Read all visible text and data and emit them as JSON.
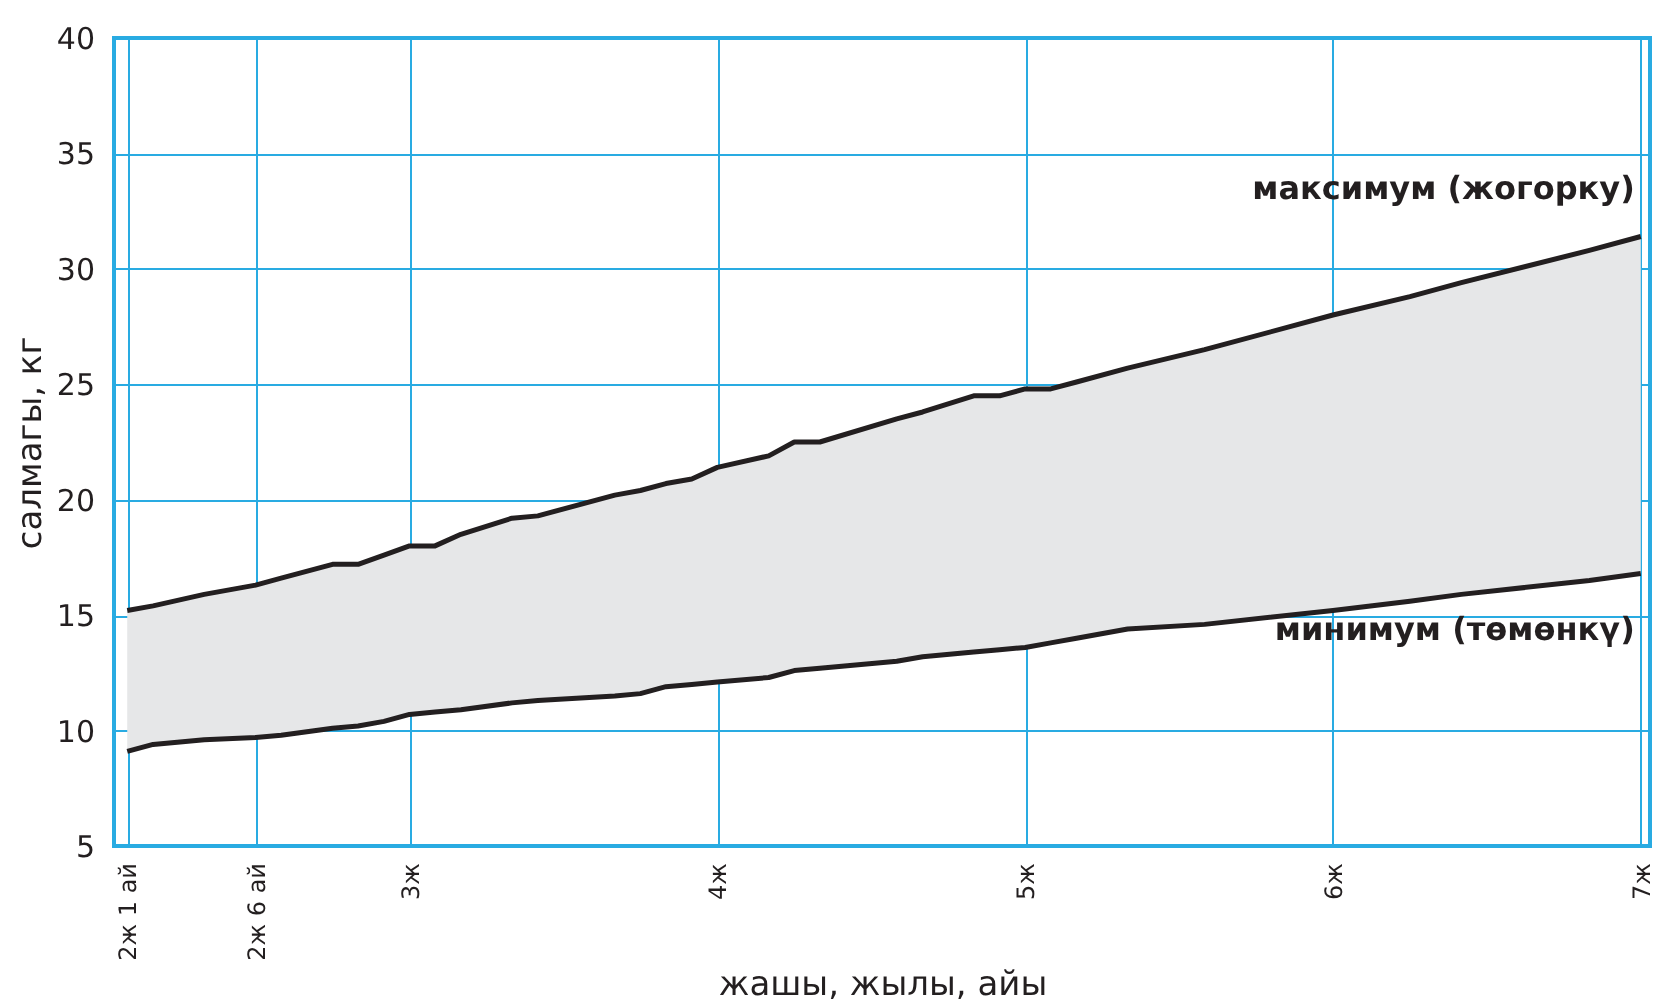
{
  "chart_data": {
    "type": "line",
    "xlabel": "жашы, жылы, айы",
    "ylabel": "салмагы, кг",
    "xlim": [
      2.04,
      7.03
    ],
    "ylim": [
      5,
      40
    ],
    "xticks": [
      {
        "value": 2.083,
        "label": "2ж 1 ай"
      },
      {
        "value": 2.5,
        "label": "2ж 6 ай"
      },
      {
        "value": 3,
        "label": "3ж"
      },
      {
        "value": 4,
        "label": "4ж"
      },
      {
        "value": 5,
        "label": "5ж"
      },
      {
        "value": 6,
        "label": "6ж"
      },
      {
        "value": 7,
        "label": "7ж"
      }
    ],
    "yticks": [
      5,
      10,
      15,
      20,
      25,
      30,
      35,
      40
    ],
    "grid": true,
    "marker": "none",
    "line_style": "solid",
    "x": [
      2.083,
      2.167,
      2.333,
      2.5,
      2.583,
      2.75,
      2.833,
      2.917,
      3,
      3.083,
      3.167,
      3.333,
      3.417,
      3.667,
      3.75,
      3.833,
      3.917,
      4,
      4.167,
      4.25,
      4.333,
      4.583,
      4.667,
      4.833,
      4.917,
      5,
      5.083,
      5.167,
      5.333,
      5.583,
      6,
      6.25,
      6.417,
      6.833,
      7
    ],
    "series": [
      {
        "name": "максимум (жогорку)",
        "color": "#231f20",
        "values": [
          15.2,
          15.4,
          15.9,
          16.3,
          16.6,
          17.2,
          17.2,
          17.6,
          18.0,
          18.0,
          18.5,
          19.2,
          19.3,
          20.2,
          20.4,
          20.7,
          20.9,
          21.4,
          21.9,
          22.5,
          22.5,
          23.5,
          23.8,
          24.5,
          24.5,
          24.8,
          24.8,
          25.1,
          25.7,
          26.5,
          28.0,
          28.8,
          29.4,
          30.8,
          31.4
        ],
        "lower": [
          9.1,
          9.4,
          9.6,
          9.7,
          9.8,
          10.1,
          10.2,
          10.4,
          10.7,
          10.8,
          10.9,
          11.2,
          11.3,
          11.5,
          11.6,
          11.9,
          12.0,
          12.1,
          12.3,
          12.6,
          12.7,
          13.0,
          13.2,
          13.4,
          13.5,
          13.6,
          13.8,
          14.0,
          14.4,
          14.6,
          15.2,
          15.6,
          15.9,
          16.5,
          16.8
        ],
        "upper": [
          15.2,
          15.4,
          15.9,
          16.3,
          16.6,
          17.2,
          17.2,
          17.6,
          18.0,
          18.0,
          18.5,
          19.2,
          19.3,
          20.2,
          20.4,
          20.7,
          20.9,
          21.4,
          21.9,
          22.5,
          22.5,
          23.5,
          23.8,
          24.5,
          24.5,
          24.8,
          24.8,
          25.1,
          25.7,
          26.5,
          28.0,
          28.8,
          29.4,
          30.8,
          31.4
        ]
      },
      {
        "name": "минимум (төмөнкү)",
        "color": "#231f20",
        "values": [
          9.1,
          9.4,
          9.6,
          9.7,
          9.8,
          10.1,
          10.2,
          10.4,
          10.7,
          10.8,
          10.9,
          11.2,
          11.3,
          11.5,
          11.6,
          11.9,
          12.0,
          12.1,
          12.3,
          12.6,
          12.7,
          13.0,
          13.2,
          13.4,
          13.5,
          13.6,
          13.8,
          14.0,
          14.4,
          14.6,
          15.2,
          15.6,
          15.9,
          16.5,
          16.8
        ]
      }
    ]
  }
}
